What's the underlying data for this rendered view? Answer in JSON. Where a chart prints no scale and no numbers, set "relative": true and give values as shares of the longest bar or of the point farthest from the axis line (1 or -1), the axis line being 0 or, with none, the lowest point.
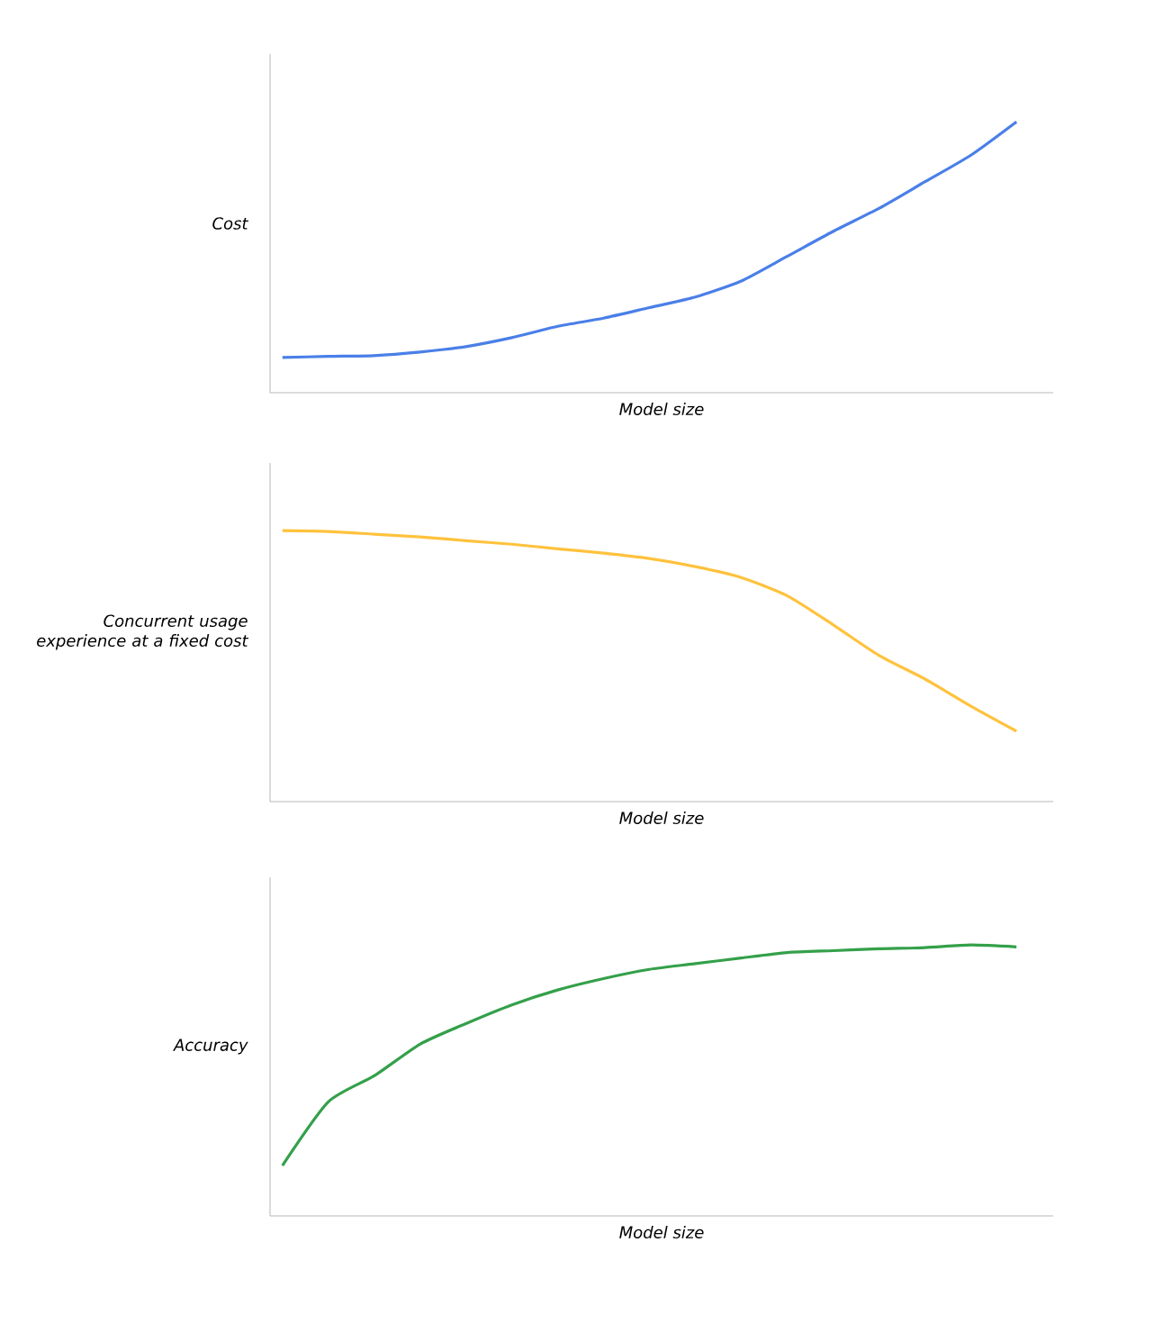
{
  "chart_data": [
    {
      "type": "line",
      "relative": true,
      "xlabel": "Model size",
      "ylabel": "Cost",
      "categories": [
        null,
        null,
        null,
        null,
        null,
        null,
        null,
        null,
        null,
        null,
        null,
        null,
        null,
        null,
        null,
        null,
        null
      ],
      "series": [
        {
          "color": "#4a7fe8",
          "values": [
            0.13,
            0.134,
            0.137,
            0.15,
            0.17,
            0.203,
            0.245,
            0.275,
            0.314,
            0.353,
            0.412,
            0.503,
            0.595,
            0.68,
            0.778,
            0.876,
            1
          ]
        }
      ]
    },
    {
      "type": "line",
      "relative": true,
      "xlabel": "Model size",
      "ylabel": "Concurrent usage experience at a fixed cost",
      "categories": [
        null,
        null,
        null,
        null,
        null,
        null,
        null,
        null,
        null,
        null,
        null,
        null,
        null,
        null,
        null,
        null,
        null
      ],
      "series": [
        {
          "color": "#ffc23d",
          "values": [
            1,
            0.997,
            0.987,
            0.977,
            0.963,
            0.95,
            0.933,
            0.917,
            0.897,
            0.867,
            0.827,
            0.76,
            0.653,
            0.54,
            0.453,
            0.353,
            0.26
          ]
        }
      ]
    },
    {
      "type": "line",
      "relative": true,
      "xlabel": "Model size",
      "ylabel": "Accuracy",
      "categories": [
        null,
        null,
        null,
        null,
        null,
        null,
        null,
        null,
        null,
        null,
        null,
        null,
        null,
        null,
        null,
        null,
        null
      ],
      "series": [
        {
          "color": "#34a04a",
          "values": [
            0.186,
            0.421,
            0.517,
            0.634,
            0.71,
            0.779,
            0.834,
            0.876,
            0.91,
            0.931,
            0.952,
            0.972,
            0.979,
            0.986,
            0.99,
            1,
            0.993
          ]
        }
      ]
    }
  ]
}
